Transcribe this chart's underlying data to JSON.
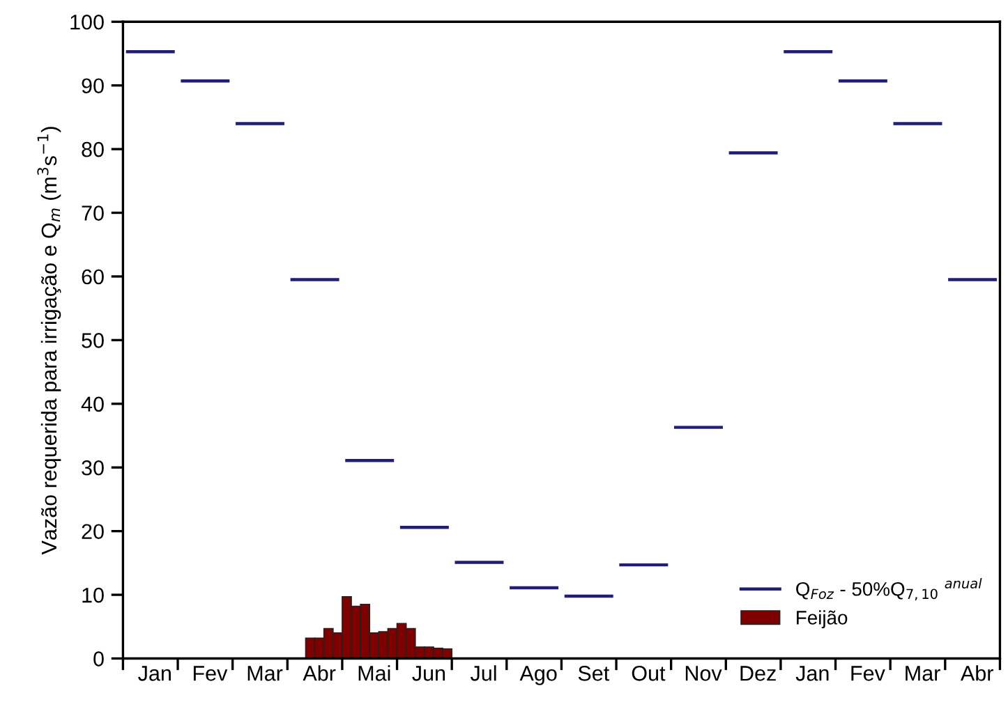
{
  "chart_data": {
    "type": "step",
    "ylabel": "Vazão requerida para irrigação e Q$_{m}$ (m$^{3}$s$^{−1}$)",
    "categories": [
      null,
      null,
      null,
      "Jan",
      null,
      null,
      null,
      null,
      null,
      "Fev",
      null,
      null,
      null,
      null,
      null,
      "Mar",
      null,
      null,
      null,
      null,
      null,
      "Abr",
      null,
      null,
      null,
      null,
      null,
      "Mai",
      null,
      null,
      null,
      null,
      null,
      "Jun",
      null,
      null,
      null,
      null,
      null,
      "Jul",
      null,
      null,
      null,
      null,
      null,
      "Ago",
      null,
      null,
      null,
      null,
      null,
      "Set",
      null,
      null,
      null,
      null,
      null,
      "Out",
      null,
      null,
      null,
      null,
      null,
      "Nov",
      null,
      null,
      null,
      null,
      null,
      "Dez",
      null,
      null,
      null,
      null,
      null,
      "Jan",
      null,
      null,
      null,
      null,
      null,
      "Fev",
      null,
      null,
      null,
      null,
      null,
      "Mar",
      null,
      null,
      null,
      null,
      null,
      "Abr",
      null,
      null
    ],
    "series": [
      {
        "name": "Q$_{Foz}$ - 50%Q$_{7,10}$ $^{anual}$",
        "color": "#1f1f7a",
        "values": [
          95.3,
          95.3,
          95.3,
          95.3,
          95.3,
          95.3,
          90.7,
          90.7,
          90.7,
          90.7,
          90.7,
          90.7,
          84.0,
          84.0,
          84.0,
          84.0,
          84.0,
          84.0,
          59.5,
          59.5,
          59.5,
          59.5,
          59.5,
          59.5,
          31.1,
          31.1,
          31.1,
          31.1,
          31.1,
          31.1,
          20.6,
          20.6,
          20.6,
          20.6,
          20.6,
          20.6,
          15.1,
          15.1,
          15.1,
          15.1,
          15.1,
          15.1,
          11.1,
          11.1,
          11.1,
          11.1,
          11.1,
          11.1,
          9.8,
          9.8,
          9.8,
          9.8,
          9.8,
          9.8,
          14.7,
          14.7,
          14.7,
          14.7,
          14.7,
          14.7,
          36.3,
          36.3,
          36.3,
          36.3,
          36.3,
          36.3,
          79.4,
          79.4,
          79.4,
          79.4,
          79.4,
          79.4,
          95.3,
          95.3,
          95.3,
          95.3,
          95.3,
          95.3,
          90.7,
          90.7,
          90.7,
          90.7,
          90.7,
          90.7,
          84.0,
          84.0,
          84.0,
          84.0,
          84.0,
          84.0,
          59.5,
          59.5,
          59.5,
          59.5,
          59.5,
          59.5
        ]
      },
      {
        "name": "Feijão",
        "type": "bar",
        "color": "#800000",
        "values": [
          null,
          null,
          null,
          null,
          null,
          null,
          null,
          null,
          null,
          null,
          null,
          null,
          null,
          null,
          null,
          null,
          null,
          null,
          null,
          null,
          3.2,
          3.2,
          4.7,
          4.0,
          9.7,
          8.2,
          8.5,
          4.0,
          4.2,
          4.7,
          5.5,
          4.7,
          1.8,
          1.8,
          1.6,
          1.5,
          null,
          null,
          null,
          null,
          null,
          null,
          null,
          null,
          null,
          null,
          null,
          null,
          null,
          null,
          null,
          null,
          null,
          null,
          null,
          null,
          null,
          null,
          null,
          null,
          null,
          null,
          null,
          null,
          null,
          null,
          null,
          null,
          null,
          null,
          null,
          null,
          null,
          null,
          null,
          null,
          null,
          null,
          null,
          null,
          null,
          null,
          null,
          null,
          null,
          null,
          null,
          null,
          null,
          null,
          null,
          null,
          null,
          null,
          null,
          null
        ]
      }
    ],
    "ylim": [
      0,
      100
    ],
    "yticks": [
      0,
      10,
      20,
      30,
      40,
      50,
      60,
      70,
      80,
      90,
      100
    ],
    "grid": false,
    "legend": "bottom right"
  }
}
